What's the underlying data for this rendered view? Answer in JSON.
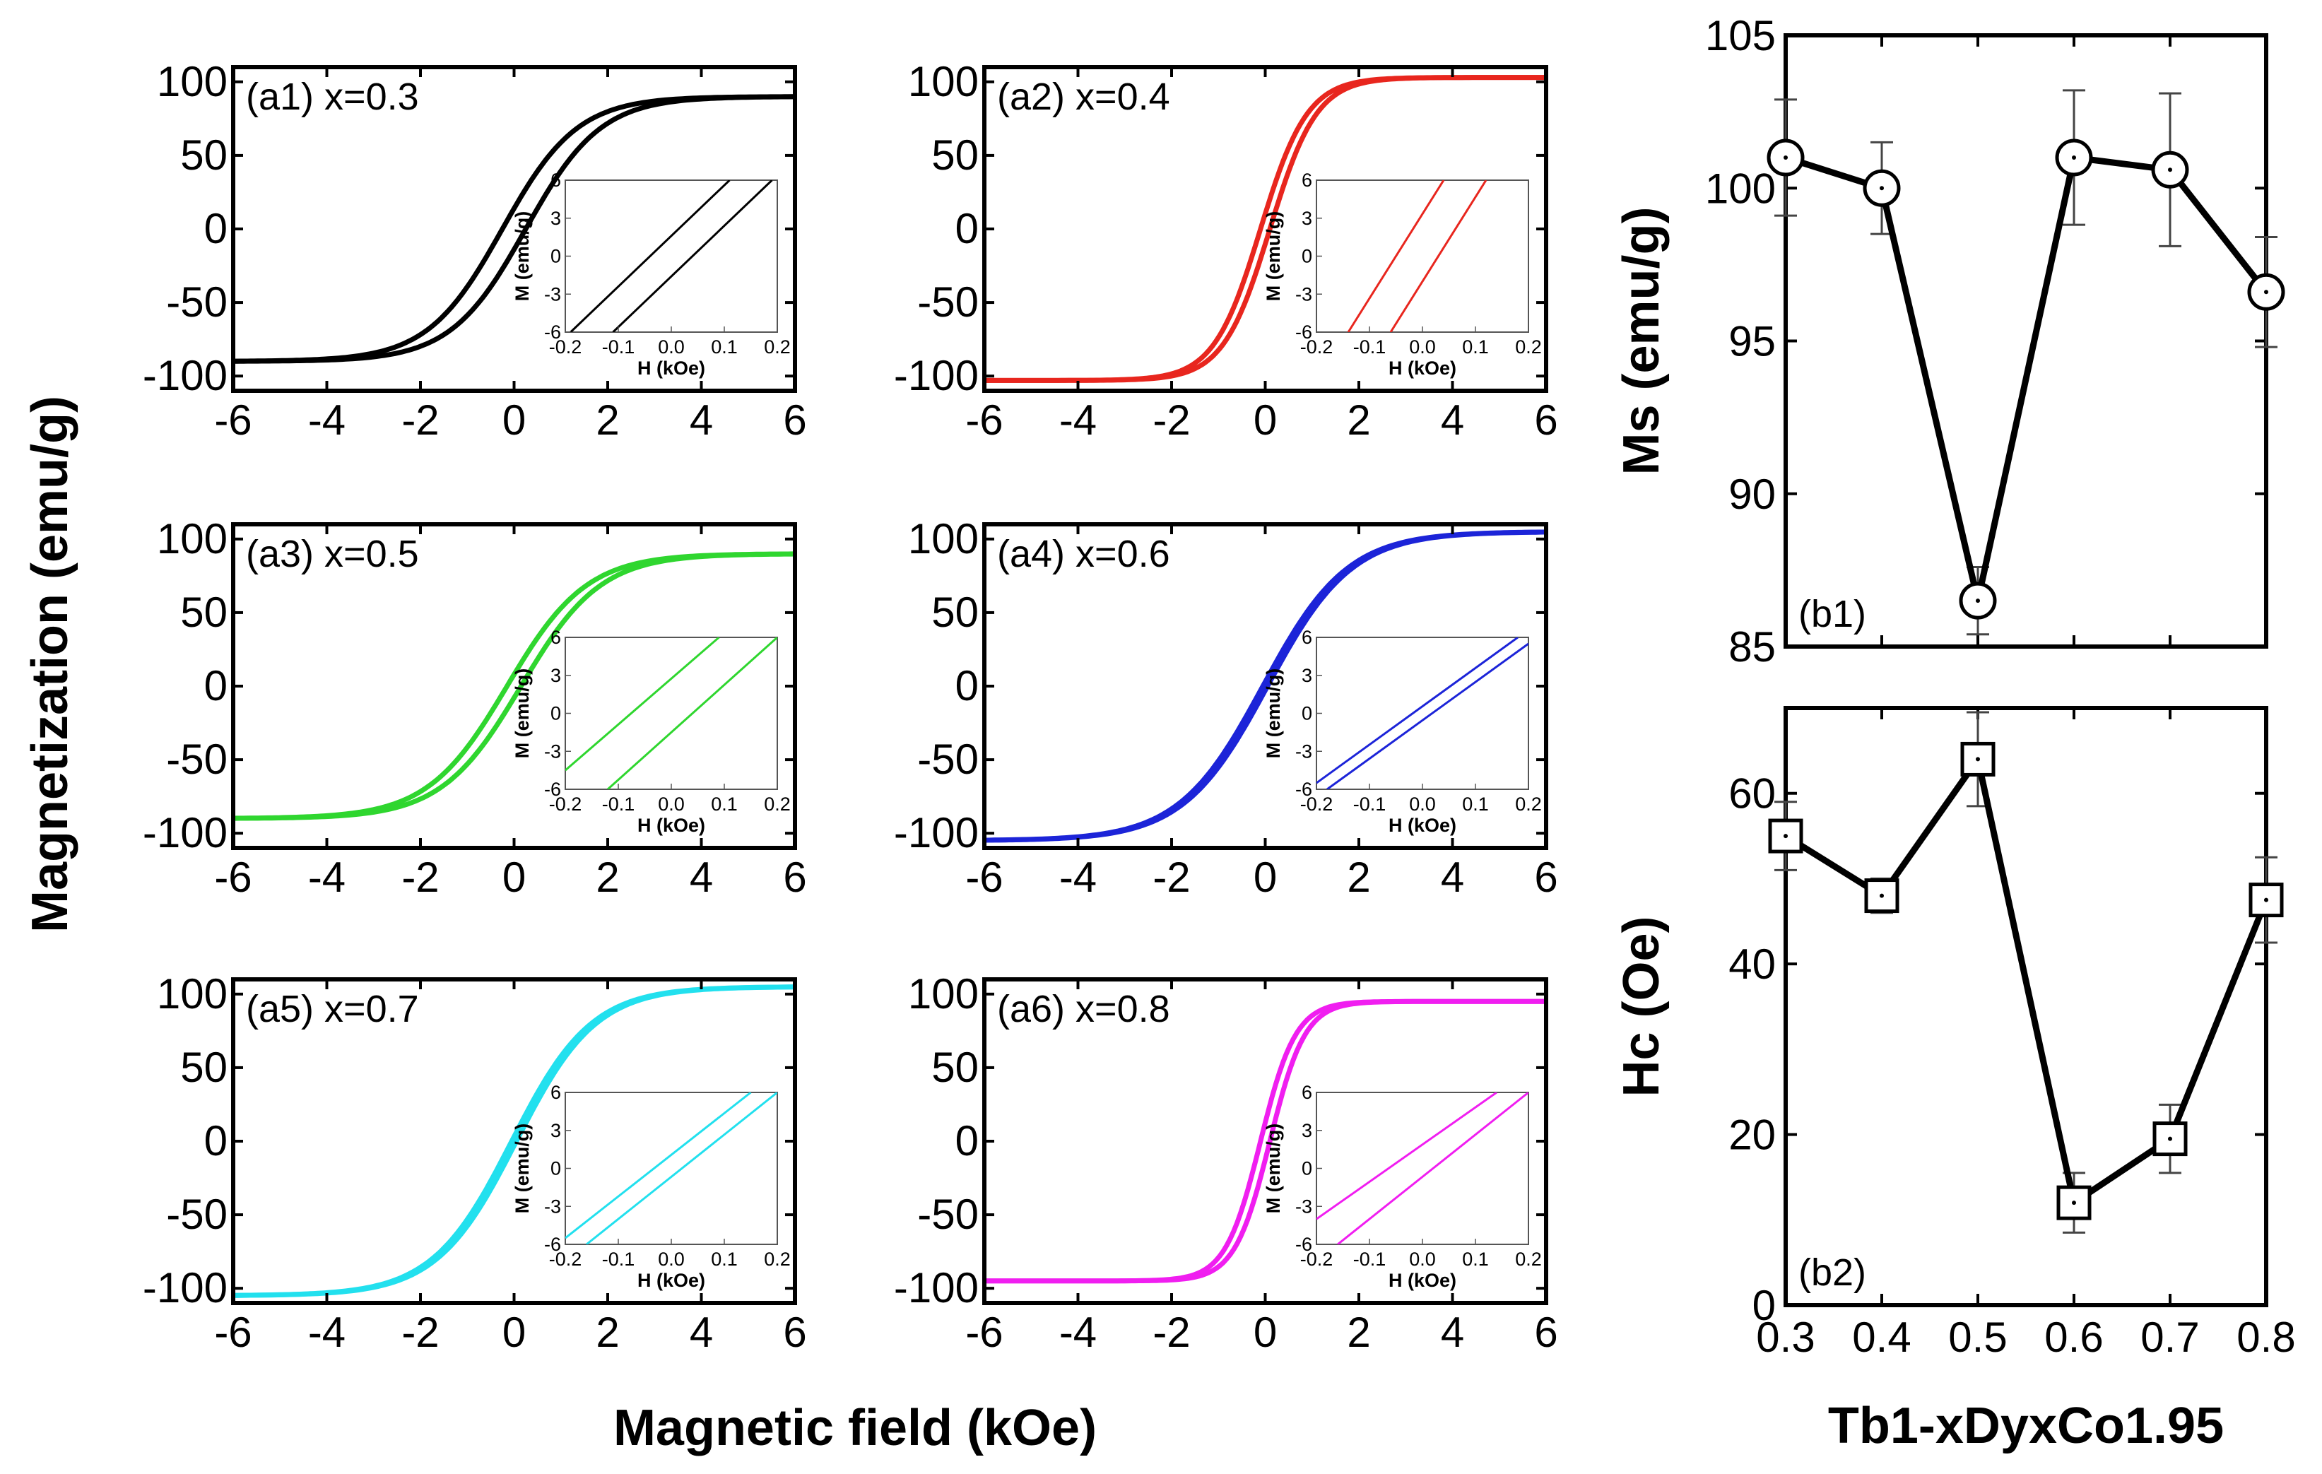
{
  "figure": {
    "shared_xlabel": "Magnetic field (kOe)",
    "shared_ylabel": "Magnetization (emu/g)"
  },
  "chart_data": [
    {
      "id": "a1",
      "type": "line",
      "label": "(a1) x=0.3",
      "x_value": 0.3,
      "color": "#000000",
      "ms": 90,
      "shape_k": 1.6,
      "hyst": 0.25,
      "xlim": [
        -6,
        6
      ],
      "ylim": [
        -110,
        110
      ],
      "xticks": [
        -6,
        -4,
        -2,
        0,
        2,
        4,
        6
      ],
      "xtick_labels": [
        "-6",
        "-4",
        "-2",
        "0",
        "2",
        "4",
        "6"
      ],
      "yticks": [
        -100,
        -50,
        0,
        50,
        100
      ],
      "ytick_labels": [
        "-100",
        "-50",
        "0",
        "50",
        "100"
      ],
      "inset": {
        "xlabel": "H (kOe)",
        "ylabel": "M (emu/g)",
        "xlim": [
          -0.2,
          0.2
        ],
        "ylim": [
          -6,
          6
        ],
        "xticks": [
          -0.2,
          -0.1,
          0.0,
          0.1,
          0.2
        ],
        "xtick_labels": [
          "-0.2",
          "-0.1",
          "0.0",
          "0.1",
          "0.2"
        ],
        "yticks": [
          -6,
          -3,
          0,
          3,
          6
        ],
        "ytick_labels": [
          "-6",
          "-3",
          "0",
          "3",
          "6"
        ],
        "lines": [
          {
            "x": [
              -0.19,
              0.11
            ],
            "y": [
              -6,
              6
            ]
          },
          {
            "x": [
              -0.11,
              0.19
            ],
            "y": [
              -6,
              6
            ]
          }
        ]
      }
    },
    {
      "id": "a2",
      "type": "line",
      "label": "(a2) x=0.4",
      "x_value": 0.4,
      "color": "#e8261e",
      "ms": 103,
      "shape_k": 1.0,
      "hyst": 0.1,
      "xlim": [
        -6,
        6
      ],
      "ylim": [
        -110,
        110
      ],
      "xticks": [
        -6,
        -4,
        -2,
        0,
        2,
        4,
        6
      ],
      "xtick_labels": [
        "-6",
        "-4",
        "-2",
        "0",
        "2",
        "4",
        "6"
      ],
      "yticks": [
        -100,
        -50,
        0,
        50,
        100
      ],
      "ytick_labels": [
        "-100",
        "-50",
        "0",
        "50",
        "100"
      ],
      "inset": {
        "xlabel": "H (kOe)",
        "ylabel": "M (emu/g)",
        "xlim": [
          -0.2,
          0.2
        ],
        "ylim": [
          -6,
          6
        ],
        "xticks": [
          -0.2,
          -0.1,
          0.0,
          0.1,
          0.2
        ],
        "xtick_labels": [
          "-0.2",
          "-0.1",
          "0.0",
          "0.1",
          "0.2"
        ],
        "yticks": [
          -6,
          -3,
          0,
          3,
          6
        ],
        "ytick_labels": [
          "-6",
          "-3",
          "0",
          "3",
          "6"
        ],
        "lines": [
          {
            "x": [
              -0.14,
              0.04
            ],
            "y": [
              -6,
              6
            ]
          },
          {
            "x": [
              -0.06,
              0.12
            ],
            "y": [
              -6,
              6
            ]
          }
        ]
      }
    },
    {
      "id": "a3",
      "type": "line",
      "label": "(a3) x=0.5",
      "x_value": 0.5,
      "color": "#2fd62f",
      "ms": 90,
      "shape_k": 1.7,
      "hyst": 0.15,
      "xlim": [
        -6,
        6
      ],
      "ylim": [
        -110,
        110
      ],
      "xticks": [
        -6,
        -4,
        -2,
        0,
        2,
        4,
        6
      ],
      "xtick_labels": [
        "-6",
        "-4",
        "-2",
        "0",
        "2",
        "4",
        "6"
      ],
      "yticks": [
        -100,
        -50,
        0,
        50,
        100
      ],
      "ytick_labels": [
        "-100",
        "-50",
        "0",
        "50",
        "100"
      ],
      "inset": {
        "xlabel": "H (kOe)",
        "ylabel": "M (emu/g)",
        "xlim": [
          -0.2,
          0.2
        ],
        "ylim": [
          -6,
          6
        ],
        "xticks": [
          -0.2,
          -0.1,
          0.0,
          0.1,
          0.2
        ],
        "xtick_labels": [
          "-0.2",
          "-0.1",
          "0.0",
          "0.1",
          "0.2"
        ],
        "yticks": [
          -6,
          -3,
          0,
          3,
          6
        ],
        "ytick_labels": [
          "-6",
          "-3",
          "0",
          "3",
          "6"
        ],
        "lines": [
          {
            "x": [
              -0.2,
              0.09
            ],
            "y": [
              -4.5,
              6
            ]
          },
          {
            "x": [
              -0.12,
              0.2
            ],
            "y": [
              -6,
              6
            ]
          }
        ]
      }
    },
    {
      "id": "a4",
      "type": "line",
      "label": "(a4) x=0.6",
      "x_value": 0.6,
      "color": "#1c24d8",
      "ms": 105,
      "shape_k": 1.8,
      "hyst": 0.05,
      "xlim": [
        -6,
        6
      ],
      "ylim": [
        -110,
        110
      ],
      "xticks": [
        -6,
        -4,
        -2,
        0,
        2,
        4,
        6
      ],
      "xtick_labels": [
        "-6",
        "-4",
        "-2",
        "0",
        "2",
        "4",
        "6"
      ],
      "yticks": [
        -100,
        -50,
        0,
        50,
        100
      ],
      "ytick_labels": [
        "-100",
        "-50",
        "0",
        "50",
        "100"
      ],
      "inset": {
        "xlabel": "H (kOe)",
        "ylabel": "M (emu/g)",
        "xlim": [
          -0.2,
          0.2
        ],
        "ylim": [
          -6,
          6
        ],
        "xticks": [
          -0.2,
          -0.1,
          0.0,
          0.1,
          0.2
        ],
        "xtick_labels": [
          "-0.2",
          "-0.1",
          "0.0",
          "0.1",
          "0.2"
        ],
        "yticks": [
          -6,
          -3,
          0,
          3,
          6
        ],
        "ytick_labels": [
          "-6",
          "-3",
          "0",
          "3",
          "6"
        ],
        "lines": [
          {
            "x": [
              -0.2,
              0.18
            ],
            "y": [
              -5.5,
              6
            ]
          },
          {
            "x": [
              -0.18,
              0.2
            ],
            "y": [
              -6,
              5.5
            ]
          }
        ]
      }
    },
    {
      "id": "a5",
      "type": "line",
      "label": "(a5) x=0.7",
      "x_value": 0.7,
      "color": "#22e0ee",
      "ms": 105,
      "shape_k": 1.7,
      "hyst": 0.05,
      "xlim": [
        -6,
        6
      ],
      "ylim": [
        -110,
        110
      ],
      "xticks": [
        -6,
        -4,
        -2,
        0,
        2,
        4,
        6
      ],
      "xtick_labels": [
        "-6",
        "-4",
        "-2",
        "0",
        "2",
        "4",
        "6"
      ],
      "yticks": [
        -100,
        -50,
        0,
        50,
        100
      ],
      "ytick_labels": [
        "-100",
        "-50",
        "0",
        "50",
        "100"
      ],
      "inset": {
        "xlabel": "H (kOe)",
        "ylabel": "M (emu/g)",
        "xlim": [
          -0.2,
          0.2
        ],
        "ylim": [
          -6,
          6
        ],
        "xticks": [
          -0.2,
          -0.1,
          0.0,
          0.1,
          0.2
        ],
        "xtick_labels": [
          "-0.2",
          "-0.1",
          "0.0",
          "0.1",
          "0.2"
        ],
        "yticks": [
          -6,
          -3,
          0,
          3,
          6
        ],
        "ytick_labels": [
          "-6",
          "-3",
          "0",
          "3",
          "6"
        ],
        "lines": [
          {
            "x": [
              -0.2,
              0.15
            ],
            "y": [
              -5.5,
              6
            ]
          },
          {
            "x": [
              -0.16,
              0.2
            ],
            "y": [
              -6,
              6
            ]
          }
        ]
      }
    },
    {
      "id": "a6",
      "type": "line",
      "label": "(a6) x=0.8",
      "x_value": 0.8,
      "color": "#f01ef0",
      "ms": 95,
      "shape_k": 0.75,
      "hyst": 0.1,
      "xlim": [
        -6,
        6
      ],
      "ylim": [
        -110,
        110
      ],
      "xticks": [
        -6,
        -4,
        -2,
        0,
        2,
        4,
        6
      ],
      "xtick_labels": [
        "-6",
        "-4",
        "-2",
        "0",
        "2",
        "4",
        "6"
      ],
      "yticks": [
        -100,
        -50,
        0,
        50,
        100
      ],
      "ytick_labels": [
        "-100",
        "-50",
        "0",
        "50",
        "100"
      ],
      "inset": {
        "xlabel": "H (kOe)",
        "ylabel": "M (emu/g)",
        "xlim": [
          -0.2,
          0.2
        ],
        "ylim": [
          -6,
          6
        ],
        "xticks": [
          -0.2,
          -0.1,
          0.0,
          0.1,
          0.2
        ],
        "xtick_labels": [
          "-0.2",
          "-0.1",
          "0.0",
          "0.1",
          "0.2"
        ],
        "yticks": [
          -6,
          -3,
          0,
          3,
          6
        ],
        "ytick_labels": [
          "-6",
          "-3",
          "0",
          "3",
          "6"
        ],
        "lines": [
          {
            "x": [
              -0.2,
              0.14
            ],
            "y": [
              -4,
              6
            ]
          },
          {
            "x": [
              -0.16,
              0.2
            ],
            "y": [
              -6,
              6
            ]
          }
        ]
      }
    },
    {
      "id": "b1",
      "type": "line",
      "label": "(b1)",
      "marker": "circle",
      "ylabel": "Ms (emu/g)",
      "xlabel": "",
      "x": [
        0.3,
        0.4,
        0.5,
        0.6,
        0.7,
        0.8
      ],
      "y": [
        101.0,
        100.0,
        86.5,
        101.0,
        100.6,
        96.6
      ],
      "yerr": [
        1.9,
        1.5,
        1.1,
        2.2,
        2.5,
        1.8
      ],
      "xlim": [
        0.3,
        0.8
      ],
      "ylim": [
        85,
        105
      ],
      "xticks": [
        0.3,
        0.4,
        0.5,
        0.6,
        0.7,
        0.8
      ],
      "yticks": [
        85,
        90,
        95,
        100,
        105
      ],
      "ytick_labels": [
        "85",
        "90",
        "95",
        "100",
        "105"
      ]
    },
    {
      "id": "b2",
      "type": "line",
      "label": "(b2)",
      "marker": "square",
      "ylabel": "Hc (Oe)",
      "xlabel": "Tb1-xDyxCo1.95",
      "x": [
        0.3,
        0.4,
        0.5,
        0.6,
        0.7,
        0.8
      ],
      "y": [
        55,
        48,
        64,
        12,
        19.5,
        47.5
      ],
      "yerr": [
        4,
        2,
        5.5,
        3.5,
        4,
        5
      ],
      "xlim": [
        0.3,
        0.8
      ],
      "ylim": [
        0,
        70
      ],
      "xticks": [
        0.3,
        0.4,
        0.5,
        0.6,
        0.7,
        0.8
      ],
      "xtick_labels": [
        "0.3",
        "0.4",
        "0.5",
        "0.6",
        "0.7",
        "0.8"
      ],
      "yticks": [
        0,
        20,
        40,
        60
      ],
      "ytick_labels": [
        "0",
        "20",
        "40",
        "60"
      ]
    }
  ]
}
